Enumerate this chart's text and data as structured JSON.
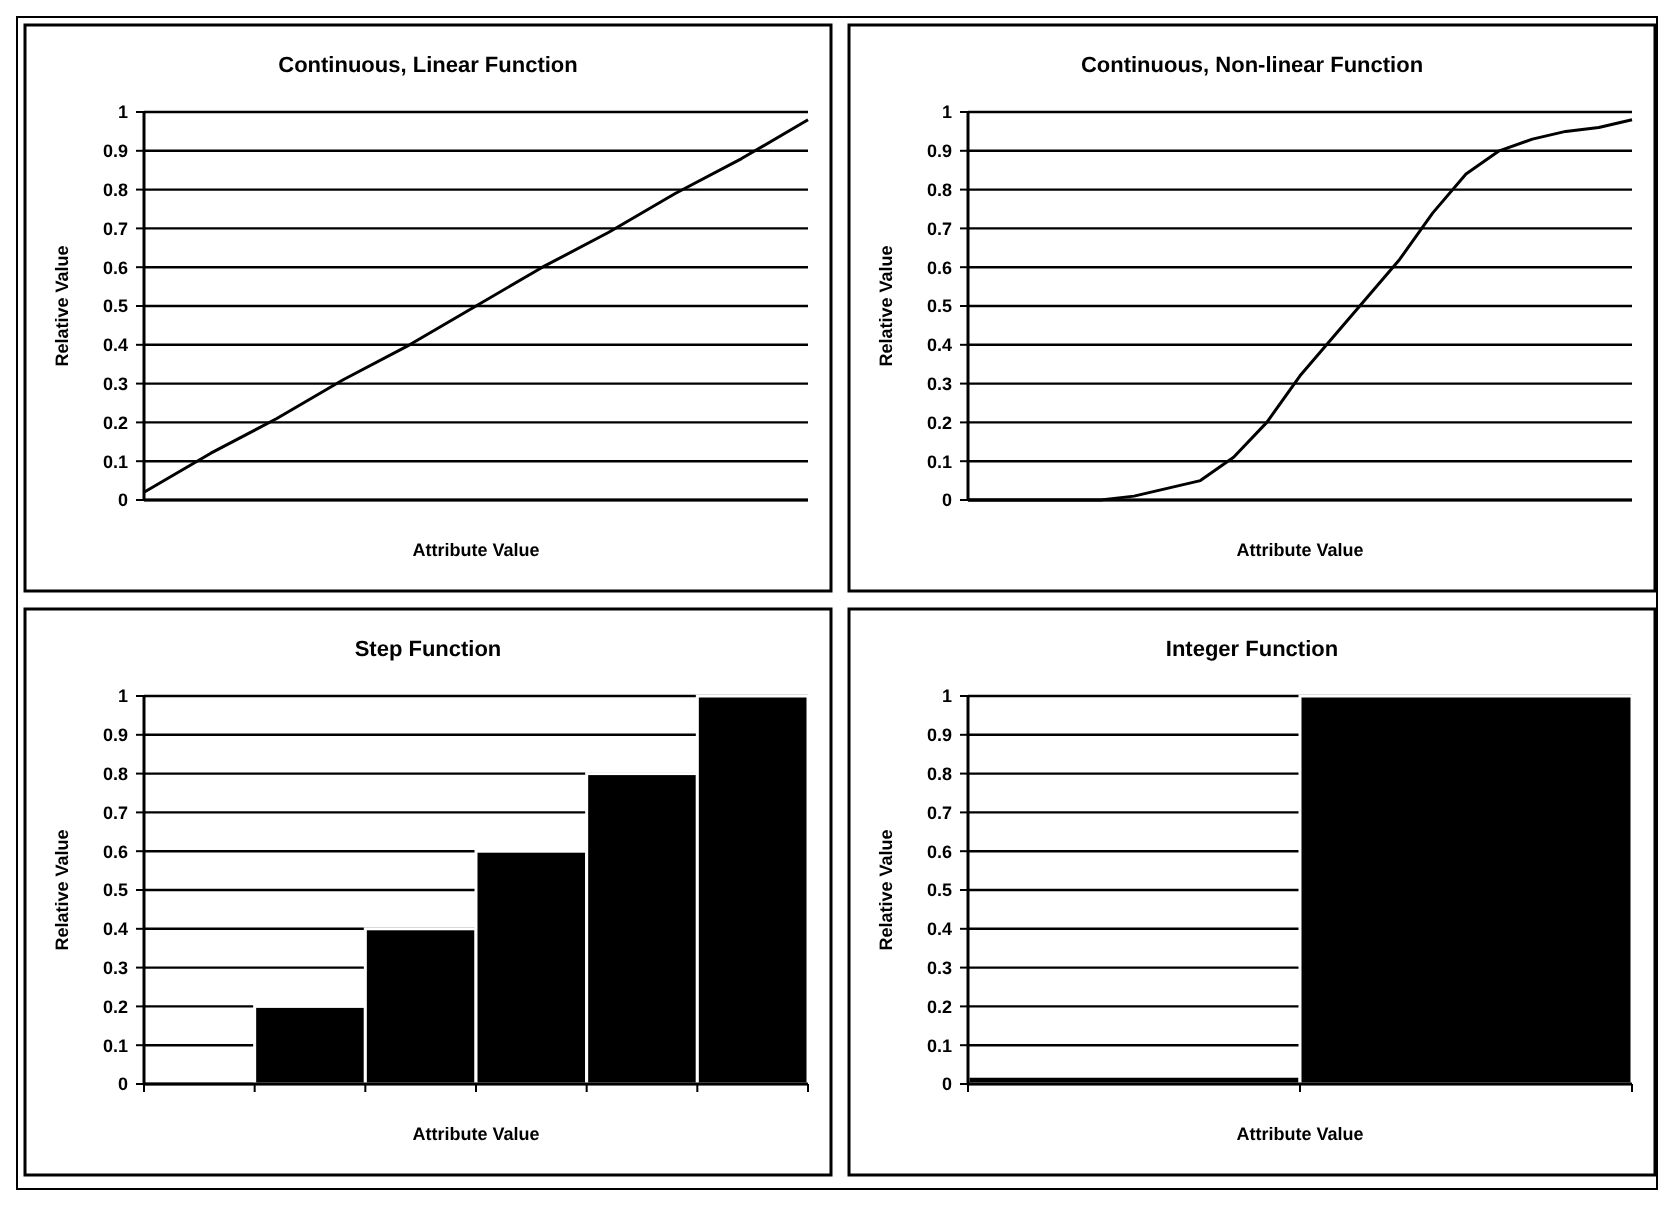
{
  "chart_data": [
    {
      "type": "line",
      "title": "Continuous, Linear Function",
      "xlabel": "Attribute Value",
      "ylabel": "Relative Value",
      "categories": [
        null,
        null,
        null,
        null,
        null,
        null,
        null,
        null,
        null,
        null,
        null
      ],
      "series": [
        {
          "color": "#000000",
          "values": [
            0.02,
            0.12,
            0.21,
            0.31,
            0.4,
            0.5,
            0.6,
            0.69,
            0.79,
            0.88,
            0.98
          ]
        }
      ],
      "ylim": [
        0,
        1
      ],
      "yticks": [
        0,
        0.1,
        0.2,
        0.3,
        0.4,
        0.5,
        0.6,
        0.7,
        0.8,
        0.9,
        1
      ],
      "grid": "y",
      "tick_labels": "y",
      "marker": "none",
      "line_style": "solid"
    },
    {
      "type": "line",
      "title": "Continuous, Non-linear Function",
      "xlabel": "Attribute Value",
      "ylabel": "Relative Value",
      "categories": [
        null,
        null,
        null,
        null,
        null,
        null,
        null,
        null,
        null,
        null,
        null,
        null,
        null,
        null,
        null,
        null,
        null,
        null,
        null,
        null,
        null
      ],
      "series": [
        {
          "color": "#000000",
          "values": [
            0,
            0,
            0,
            0,
            0,
            0.01,
            0.03,
            0.05,
            0.11,
            0.2,
            0.32,
            0.42,
            0.52,
            0.62,
            0.74,
            0.84,
            0.9,
            0.93,
            0.95,
            0.96,
            0.98
          ]
        }
      ],
      "ylim": [
        0,
        1
      ],
      "yticks": [
        0,
        0.1,
        0.2,
        0.3,
        0.4,
        0.5,
        0.6,
        0.7,
        0.8,
        0.9,
        1
      ],
      "grid": "y",
      "tick_labels": "y",
      "marker": "none",
      "line_style": "solid"
    },
    {
      "type": "bar",
      "title": "Step Function",
      "xlabel": "Attribute Value",
      "ylabel": "Relative Value",
      "categories": [
        null,
        null,
        null,
        null,
        null,
        null
      ],
      "values": [
        0,
        0.2,
        0.4,
        0.6,
        0.8,
        1
      ],
      "color": "#000000",
      "ylim": [
        0,
        1
      ],
      "yticks": [
        0,
        0.1,
        0.2,
        0.3,
        0.4,
        0.5,
        0.6,
        0.7,
        0.8,
        0.9,
        1
      ],
      "grid": "y",
      "tick_labels": "y"
    },
    {
      "type": "bar",
      "title": "Integer Function",
      "xlabel": "Attribute Value",
      "ylabel": "Relative Value",
      "categories": [
        null,
        null
      ],
      "values": [
        0.02,
        1
      ],
      "color": "#000000",
      "ylim": [
        0,
        1
      ],
      "yticks": [
        0,
        0.1,
        0.2,
        0.3,
        0.4,
        0.5,
        0.6,
        0.7,
        0.8,
        0.9,
        1
      ],
      "grid": "y",
      "tick_labels": "y"
    }
  ]
}
